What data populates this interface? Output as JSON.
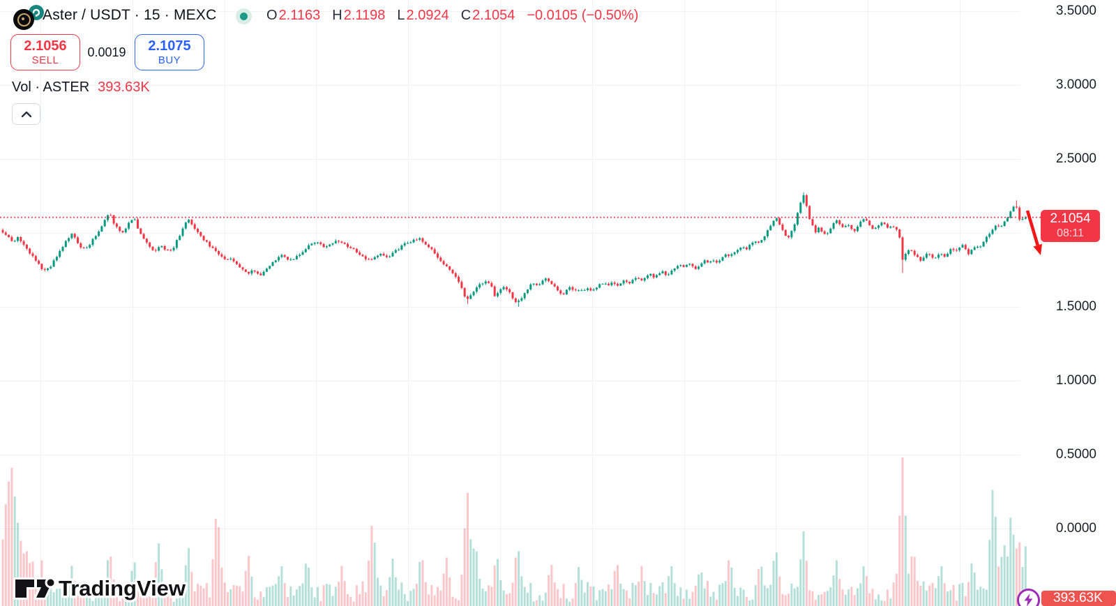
{
  "header": {
    "symbol": "Aster / USDT · 15 · MEXC",
    "market_status": "open",
    "ohlc": {
      "o_label": "O",
      "o": "2.1163",
      "h_label": "H",
      "h": "2.1198",
      "l_label": "L",
      "l": "2.0924",
      "c_label": "C",
      "c": "2.1054",
      "change": "−0.0105 (−0.50%)"
    }
  },
  "trade_panel": {
    "sell_price": "2.1056",
    "sell_label": "SELL",
    "spread": "0.0019",
    "buy_price": "2.1075",
    "buy_label": "BUY"
  },
  "volume_row": {
    "label": "Vol · ASTER",
    "value": "393.63K"
  },
  "price_scale": {
    "last_price_label": "2.1054",
    "countdown": "08:11"
  },
  "volume_scale": {
    "current_value": "393.63K"
  },
  "branding": {
    "logo_text": "TradingView"
  },
  "icons": [
    "aster-coin-icon",
    "exchange-badge-icon",
    "market-status-icon",
    "chevron-up-icon",
    "lightning-icon",
    "tradingview-mark-icon"
  ],
  "colors": {
    "up": "#089981",
    "down": "#f23645",
    "buy_blue": "#2962ff",
    "volume_up": "rgba(8,153,129,0.30)",
    "volume_down": "rgba(242,54,69,0.28)",
    "grid": "#f0f2f7",
    "price_line": "#f23645",
    "price_label_bg": "#f23645",
    "volume_label_bg": "#ef5350",
    "badge_purple": "#9c2bb5",
    "arrow_red": "#f01716",
    "text": "#131722"
  },
  "chart_data": {
    "type": "candlestick_with_volume",
    "symbol": "ASTER/USDT",
    "exchange": "MEXC",
    "interval_minutes": 15,
    "current_bar": {
      "open": 2.1163,
      "high": 2.1198,
      "low": 2.0924,
      "close": 2.1054,
      "change": -0.0105,
      "change_pct": -0.5
    },
    "last_price": 2.1054,
    "countdown": "08:11",
    "session_volume": "393.63K",
    "y_axis": {
      "ticks": [
        "3.5000",
        "3.0000",
        "2.5000",
        "1.5000",
        "1.0000",
        "0.5000",
        "0.0000"
      ],
      "tick_prices": [
        3.5,
        3.0,
        2.5,
        1.5,
        1.0,
        0.5,
        0.0
      ],
      "hidden_tick_price": 2.0,
      "range_shown": [
        -0.55,
        3.57
      ],
      "grid": true
    },
    "price_path": [
      [
        2,
        2.02
      ],
      [
        10,
        1.98
      ],
      [
        18,
        1.94
      ],
      [
        26,
        1.97
      ],
      [
        34,
        1.92
      ],
      [
        42,
        1.87
      ],
      [
        50,
        1.82
      ],
      [
        58,
        1.77
      ],
      [
        65,
        1.74
      ],
      [
        72,
        1.77
      ],
      [
        80,
        1.83
      ],
      [
        88,
        1.89
      ],
      [
        96,
        1.95
      ],
      [
        103,
        2.0
      ],
      [
        110,
        1.95
      ],
      [
        117,
        1.89
      ],
      [
        124,
        1.9
      ],
      [
        131,
        1.94
      ],
      [
        139,
        1.99
      ],
      [
        147,
        2.06
      ],
      [
        154,
        2.12
      ],
      [
        158,
        2.135
      ],
      [
        163,
        2.07
      ],
      [
        169,
        2.03
      ],
      [
        175,
        2.0
      ],
      [
        181,
        2.04
      ],
      [
        187,
        2.08
      ],
      [
        192,
        2.1
      ],
      [
        197,
        2.04
      ],
      [
        203,
        1.99
      ],
      [
        209,
        1.94
      ],
      [
        216,
        1.9
      ],
      [
        223,
        1.88
      ],
      [
        230,
        1.92
      ],
      [
        237,
        1.89
      ],
      [
        244,
        1.87
      ],
      [
        251,
        1.92
      ],
      [
        258,
        1.99
      ],
      [
        264,
        2.05
      ],
      [
        270,
        2.09
      ],
      [
        276,
        2.05
      ],
      [
        283,
        2.01
      ],
      [
        290,
        1.97
      ],
      [
        297,
        1.93
      ],
      [
        304,
        1.9
      ],
      [
        311,
        1.87
      ],
      [
        318,
        1.84
      ],
      [
        325,
        1.81
      ],
      [
        332,
        1.83
      ],
      [
        339,
        1.79
      ],
      [
        347,
        1.75
      ],
      [
        355,
        1.72
      ],
      [
        363,
        1.75
      ],
      [
        371,
        1.71
      ],
      [
        379,
        1.74
      ],
      [
        387,
        1.78
      ],
      [
        395,
        1.82
      ],
      [
        403,
        1.86
      ],
      [
        411,
        1.83
      ],
      [
        419,
        1.81
      ],
      [
        427,
        1.85
      ],
      [
        435,
        1.88
      ],
      [
        443,
        1.91
      ],
      [
        451,
        1.94
      ],
      [
        459,
        1.92
      ],
      [
        467,
        1.9
      ],
      [
        475,
        1.93
      ],
      [
        483,
        1.95
      ],
      [
        491,
        1.93
      ],
      [
        499,
        1.91
      ],
      [
        507,
        1.89
      ],
      [
        515,
        1.86
      ],
      [
        523,
        1.83
      ],
      [
        531,
        1.81
      ],
      [
        539,
        1.84
      ],
      [
        547,
        1.87
      ],
      [
        555,
        1.83
      ],
      [
        563,
        1.86
      ],
      [
        571,
        1.89
      ],
      [
        579,
        1.92
      ],
      [
        587,
        1.94
      ],
      [
        595,
        1.95
      ],
      [
        602,
        1.965
      ],
      [
        608,
        1.94
      ],
      [
        614,
        1.91
      ],
      [
        620,
        1.88
      ],
      [
        626,
        1.85
      ],
      [
        632,
        1.81
      ],
      [
        638,
        1.78
      ],
      [
        644,
        1.75
      ],
      [
        650,
        1.72
      ],
      [
        656,
        1.69
      ],
      [
        662,
        1.62
      ],
      [
        668,
        1.54
      ],
      [
        674,
        1.57
      ],
      [
        680,
        1.61
      ],
      [
        686,
        1.64
      ],
      [
        692,
        1.66
      ],
      [
        698,
        1.67
      ],
      [
        704,
        1.64
      ],
      [
        710,
        1.57
      ],
      [
        716,
        1.6
      ],
      [
        722,
        1.64
      ],
      [
        728,
        1.61
      ],
      [
        734,
        1.57
      ],
      [
        740,
        1.53
      ],
      [
        746,
        1.55
      ],
      [
        752,
        1.59
      ],
      [
        758,
        1.63
      ],
      [
        764,
        1.66
      ],
      [
        770,
        1.64
      ],
      [
        776,
        1.67
      ],
      [
        782,
        1.69
      ],
      [
        788,
        1.67
      ],
      [
        794,
        1.64
      ],
      [
        800,
        1.61
      ],
      [
        806,
        1.58
      ],
      [
        812,
        1.61
      ],
      [
        818,
        1.63
      ],
      [
        824,
        1.6
      ],
      [
        830,
        1.62
      ],
      [
        836,
        1.61
      ],
      [
        842,
        1.63
      ],
      [
        848,
        1.61
      ],
      [
        854,
        1.63
      ],
      [
        860,
        1.65
      ],
      [
        866,
        1.67
      ],
      [
        872,
        1.65
      ],
      [
        878,
        1.67
      ],
      [
        884,
        1.64
      ],
      [
        890,
        1.66
      ],
      [
        896,
        1.68
      ],
      [
        902,
        1.66
      ],
      [
        908,
        1.68
      ],
      [
        914,
        1.7
      ],
      [
        920,
        1.67
      ],
      [
        926,
        1.7
      ],
      [
        932,
        1.72
      ],
      [
        938,
        1.69
      ],
      [
        944,
        1.72
      ],
      [
        950,
        1.74
      ],
      [
        956,
        1.71
      ],
      [
        962,
        1.74
      ],
      [
        968,
        1.77
      ],
      [
        974,
        1.79
      ],
      [
        980,
        1.77
      ],
      [
        986,
        1.8
      ],
      [
        992,
        1.77
      ],
      [
        998,
        1.75
      ],
      [
        1004,
        1.78
      ],
      [
        1010,
        1.81
      ],
      [
        1016,
        1.79
      ],
      [
        1022,
        1.82
      ],
      [
        1028,
        1.8
      ],
      [
        1034,
        1.83
      ],
      [
        1040,
        1.86
      ],
      [
        1046,
        1.84
      ],
      [
        1052,
        1.87
      ],
      [
        1058,
        1.89
      ],
      [
        1064,
        1.91
      ],
      [
        1070,
        1.89
      ],
      [
        1076,
        1.92
      ],
      [
        1082,
        1.94
      ],
      [
        1088,
        1.93
      ],
      [
        1094,
        1.97
      ],
      [
        1100,
        2.01
      ],
      [
        1106,
        2.06
      ],
      [
        1112,
        2.11
      ],
      [
        1116,
        2.08
      ],
      [
        1121,
        2.02
      ],
      [
        1126,
        1.98
      ],
      [
        1131,
        1.97
      ],
      [
        1136,
        2.02
      ],
      [
        1141,
        2.09
      ],
      [
        1146,
        2.17
      ],
      [
        1150,
        2.24
      ],
      [
        1153,
        2.255
      ],
      [
        1157,
        2.17
      ],
      [
        1161,
        2.09
      ],
      [
        1165,
        2.05
      ],
      [
        1169,
        2.01
      ],
      [
        1174,
        2.04
      ],
      [
        1179,
        2.0
      ],
      [
        1184,
        1.98
      ],
      [
        1189,
        2.02
      ],
      [
        1194,
        2.06
      ],
      [
        1199,
        2.09
      ],
      [
        1204,
        2.06
      ],
      [
        1209,
        2.03
      ],
      [
        1214,
        2.06
      ],
      [
        1219,
        2.04
      ],
      [
        1224,
        2.01
      ],
      [
        1229,
        2.04
      ],
      [
        1234,
        2.08
      ],
      [
        1239,
        2.1
      ],
      [
        1244,
        2.07
      ],
      [
        1249,
        2.04
      ],
      [
        1254,
        2.02
      ],
      [
        1259,
        2.05
      ],
      [
        1264,
        2.07
      ],
      [
        1269,
        2.05
      ],
      [
        1274,
        2.03
      ],
      [
        1279,
        2.05
      ],
      [
        1284,
        2.03
      ],
      [
        1289,
        2.0
      ],
      [
        1294,
        1.82
      ],
      [
        1299,
        1.86
      ],
      [
        1304,
        1.89
      ],
      [
        1309,
        1.87
      ],
      [
        1314,
        1.84
      ],
      [
        1319,
        1.81
      ],
      [
        1324,
        1.84
      ],
      [
        1329,
        1.87
      ],
      [
        1334,
        1.85
      ],
      [
        1339,
        1.82
      ],
      [
        1344,
        1.85
      ],
      [
        1349,
        1.87
      ],
      [
        1354,
        1.84
      ],
      [
        1359,
        1.87
      ],
      [
        1364,
        1.89
      ],
      [
        1369,
        1.87
      ],
      [
        1374,
        1.9
      ],
      [
        1379,
        1.92
      ],
      [
        1384,
        1.89
      ],
      [
        1389,
        1.86
      ],
      [
        1394,
        1.89
      ],
      [
        1399,
        1.92
      ],
      [
        1404,
        1.9
      ],
      [
        1409,
        1.93
      ],
      [
        1414,
        1.97
      ],
      [
        1419,
        2.0
      ],
      [
        1424,
        2.03
      ],
      [
        1429,
        2.06
      ],
      [
        1434,
        2.04
      ],
      [
        1439,
        2.07
      ],
      [
        1444,
        2.1
      ],
      [
        1449,
        2.14
      ],
      [
        1453,
        2.18
      ],
      [
        1456,
        2.21
      ],
      [
        1459,
        2.13
      ],
      [
        1462,
        2.08
      ],
      [
        1466,
        2.1
      ],
      [
        1470,
        2.12
      ],
      [
        1474,
        2.105
      ]
    ],
    "wick_overrides": [
      [
        670,
        "low",
        1.52
      ],
      [
        742,
        "low",
        1.5
      ],
      [
        1152,
        "high",
        2.275
      ],
      [
        1294,
        "low",
        1.73
      ],
      [
        1456,
        "high",
        2.22
      ]
    ],
    "volume_spikes": [
      [
        8,
        150
      ],
      [
        13,
        185
      ],
      [
        17,
        200
      ],
      [
        21,
        160
      ],
      [
        26,
        125
      ],
      [
        31,
        105
      ],
      [
        37,
        90
      ],
      [
        45,
        78
      ],
      [
        60,
        66
      ],
      [
        103,
        58
      ],
      [
        157,
        85
      ],
      [
        192,
        70
      ],
      [
        227,
        95
      ],
      [
        270,
        88
      ],
      [
        311,
        148
      ],
      [
        356,
        76
      ],
      [
        403,
        62
      ],
      [
        440,
        72
      ],
      [
        490,
        58
      ],
      [
        534,
        128
      ],
      [
        563,
        68
      ],
      [
        604,
        80
      ],
      [
        640,
        72
      ],
      [
        670,
        170
      ],
      [
        681,
        100
      ],
      [
        712,
        78
      ],
      [
        742,
        92
      ],
      [
        790,
        64
      ],
      [
        830,
        58
      ],
      [
        884,
        68
      ],
      [
        920,
        58
      ],
      [
        962,
        62
      ],
      [
        1004,
        58
      ],
      [
        1046,
        75
      ],
      [
        1090,
        68
      ],
      [
        1112,
        88
      ],
      [
        1152,
        108
      ],
      [
        1199,
        68
      ],
      [
        1239,
        62
      ],
      [
        1294,
        213
      ],
      [
        1309,
        88
      ],
      [
        1349,
        62
      ],
      [
        1394,
        68
      ],
      [
        1424,
        183
      ],
      [
        1439,
        98
      ],
      [
        1450,
        142
      ],
      [
        1460,
        108
      ],
      [
        1470,
        88
      ]
    ],
    "annotation_arrow": {
      "from": [
        1473,
        302
      ],
      "to": [
        1492,
        366
      ]
    }
  }
}
